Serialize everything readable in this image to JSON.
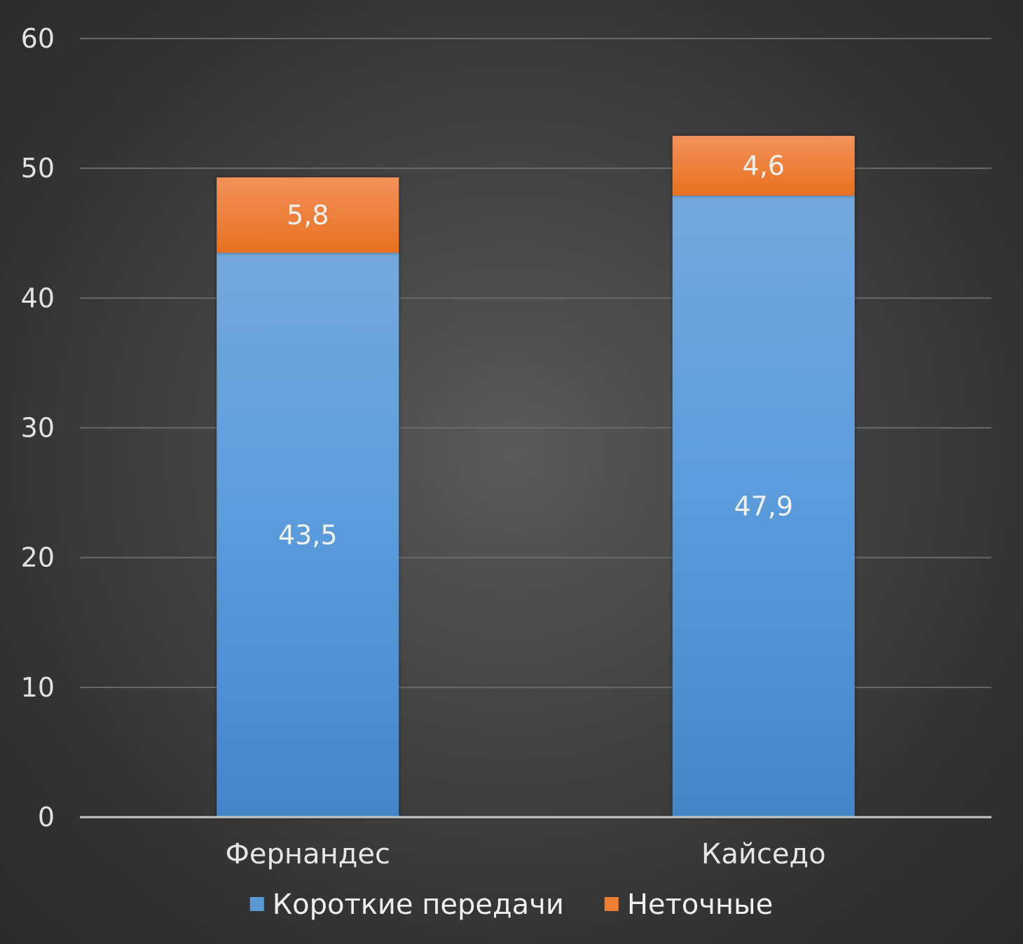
{
  "chart_data": {
    "type": "bar",
    "stacked": true,
    "categories": [
      "Фернандес",
      "Кайседо"
    ],
    "series": [
      {
        "name": "Короткие передачи",
        "values": [
          43.5,
          47.9
        ],
        "labels": [
          "43,5",
          "47,9"
        ],
        "color": "#5b9bd5"
      },
      {
        "name": "Неточные",
        "values": [
          5.8,
          4.6
        ],
        "labels": [
          "5,8",
          "4,6"
        ],
        "color": "#ed7d31"
      }
    ],
    "ylim": [
      0,
      60
    ],
    "yticks": [
      0,
      10,
      20,
      30,
      40,
      50,
      60
    ],
    "grid": true,
    "legend": "bottom",
    "title": "",
    "xlabel": "",
    "ylabel": ""
  }
}
